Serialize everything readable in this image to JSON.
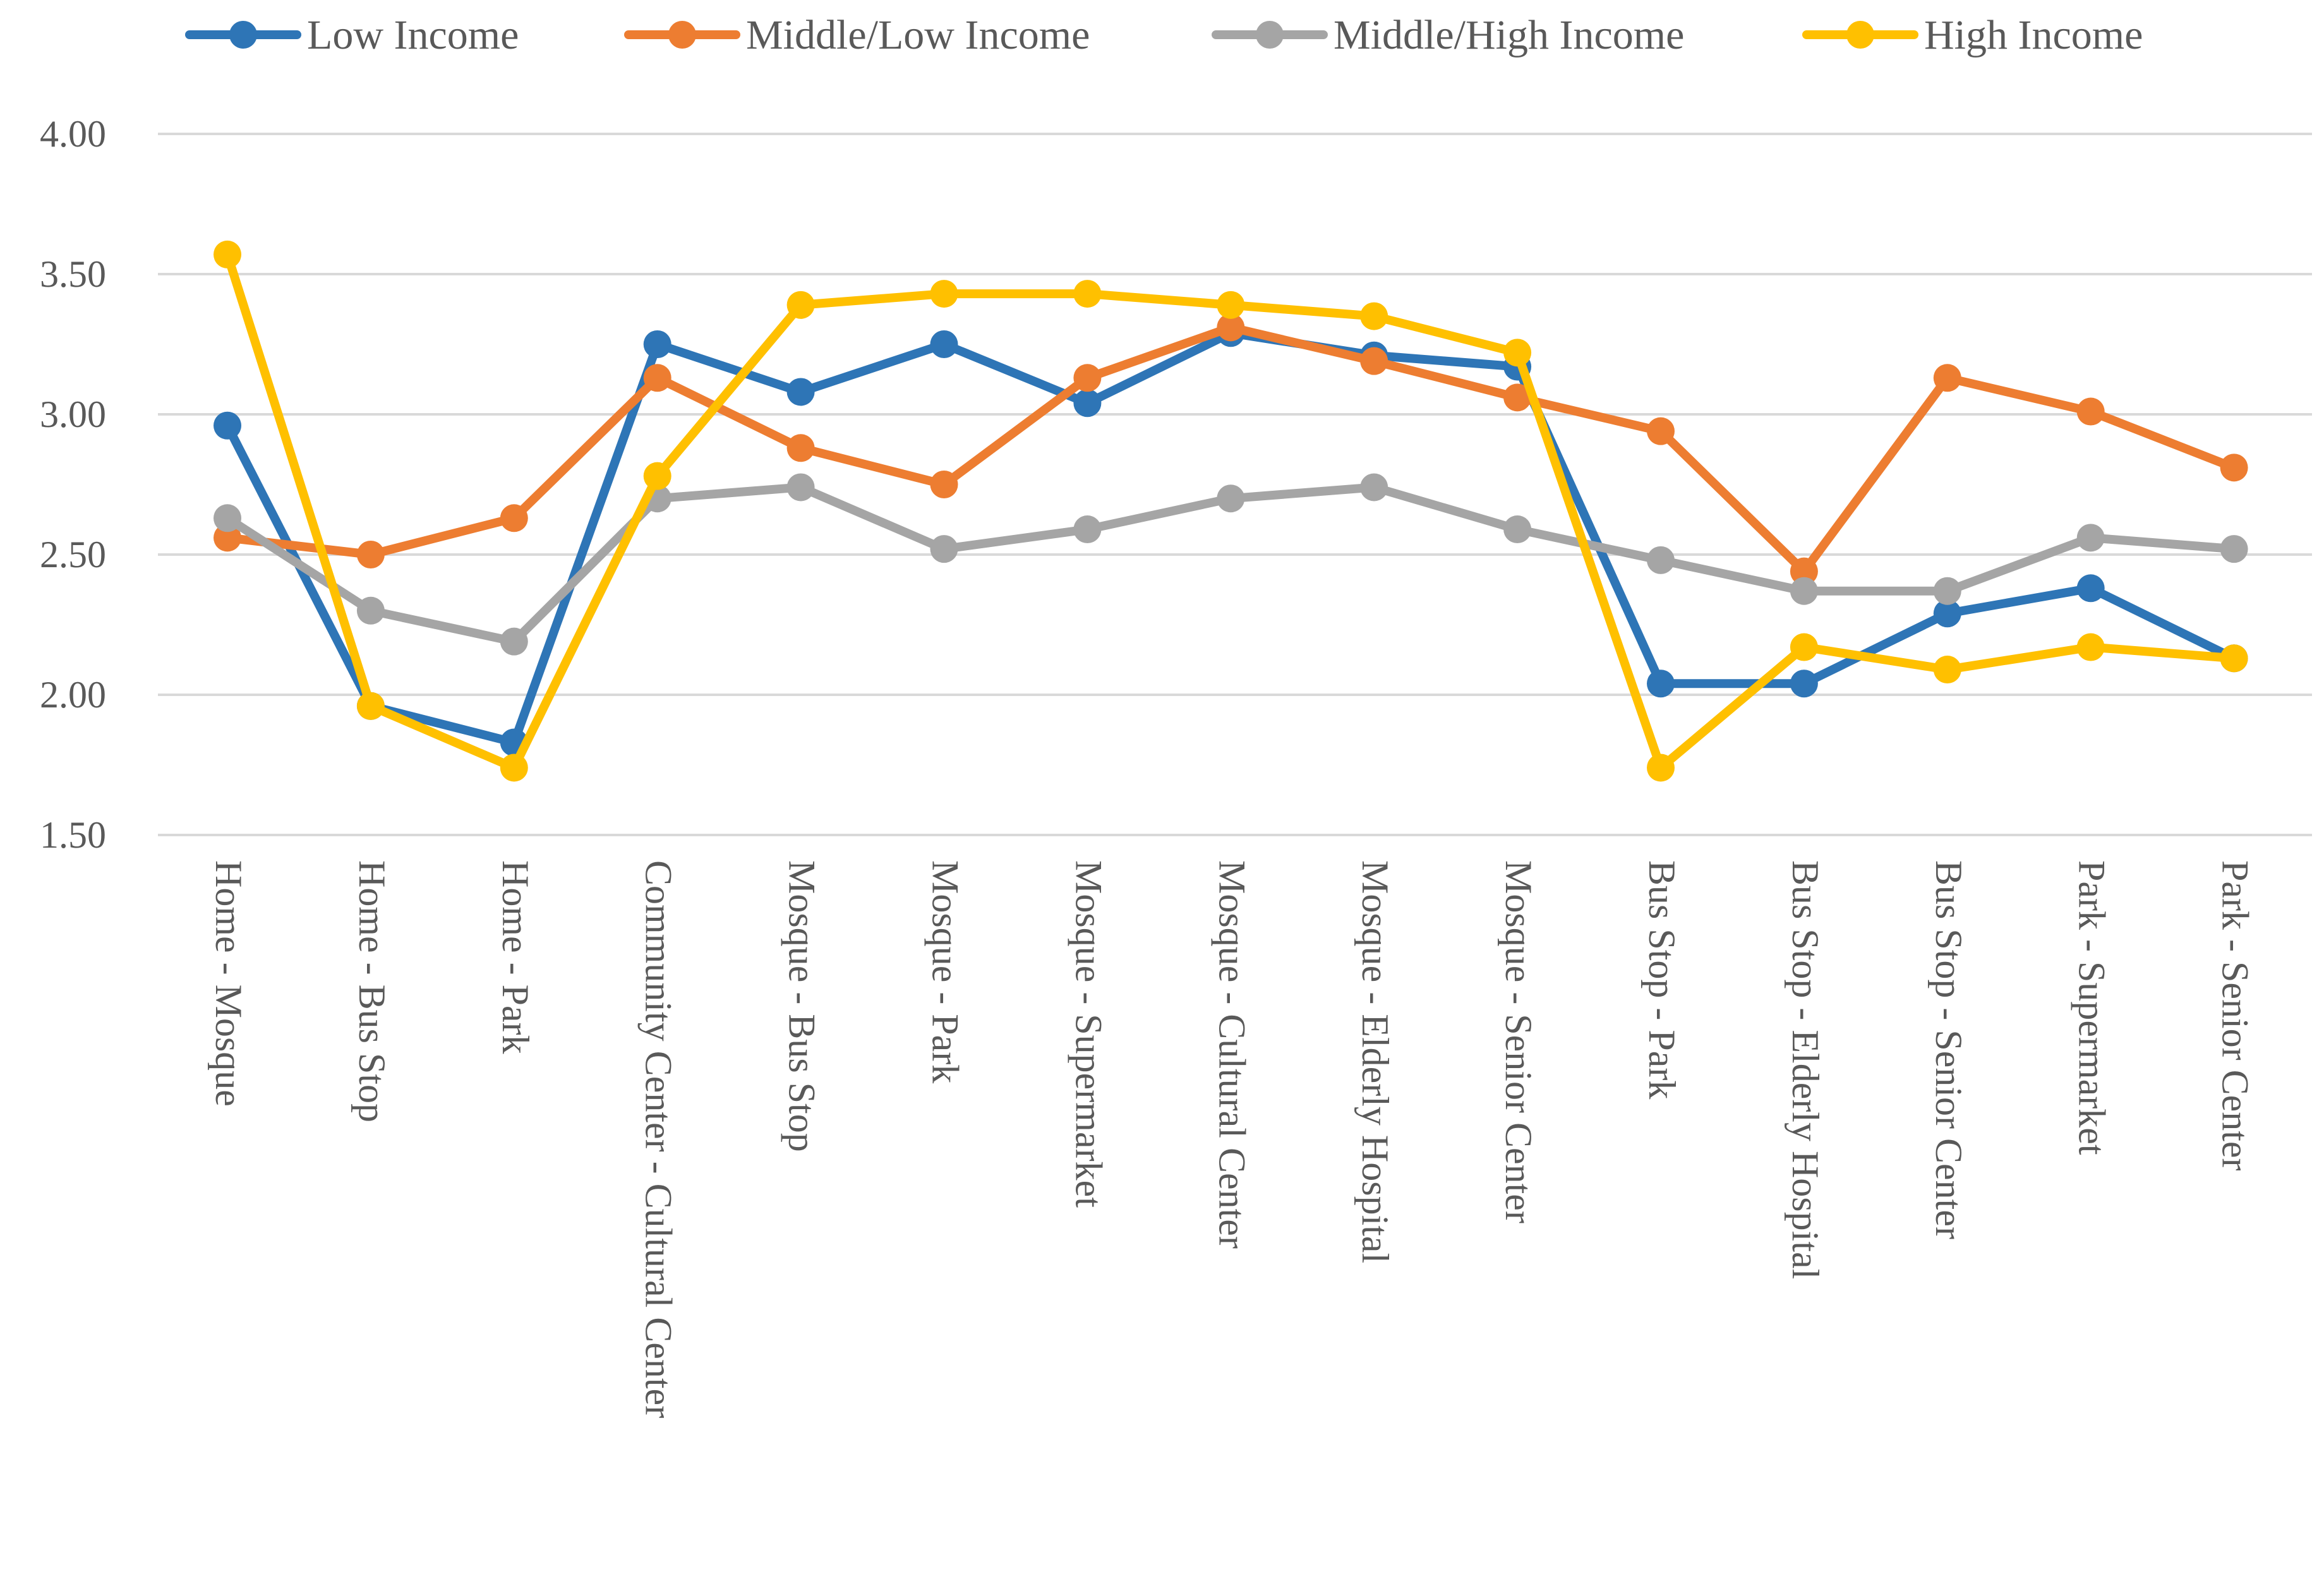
{
  "chart_data": {
    "type": "line",
    "title": "",
    "xlabel": "",
    "ylabel": "",
    "ylim": [
      1.5,
      4.0
    ],
    "yticks": [
      1.5,
      2.0,
      2.5,
      3.0,
      3.5,
      4.0
    ],
    "ytick_labels": [
      "1.50",
      "2.00",
      "2.50",
      "3.00",
      "3.50",
      "4.00"
    ],
    "grid": true,
    "legend_position": "top",
    "categories": [
      "Home - Mosque",
      "Home - Bus Stop",
      "Home - Park",
      "Community Center - Cultural Center",
      "Mosque - Bus Stop",
      "Mosque - Park",
      "Mosque - Supermarket",
      "Mosque - Cultural Center",
      "Mosque - Elderly Hospital",
      "Mosque - Senior Center",
      "Bus Stop - Park",
      "Bus Stop - Elderly Hospital",
      "Bus Stop - Senior Center",
      "Park - Supermarket",
      "Park - Senior Center"
    ],
    "series": [
      {
        "name": "Low Income",
        "color": "#2e75b6",
        "values": [
          2.96,
          1.96,
          1.83,
          3.25,
          3.08,
          3.25,
          3.04,
          3.29,
          3.21,
          3.17,
          2.04,
          2.04,
          2.29,
          2.38,
          2.13
        ]
      },
      {
        "name": "Middle/Low Income",
        "color": "#ed7d31",
        "values": [
          2.56,
          2.5,
          2.63,
          3.13,
          2.88,
          2.75,
          3.13,
          3.31,
          3.19,
          3.06,
          2.94,
          2.44,
          3.13,
          3.01,
          2.81
        ]
      },
      {
        "name": "Middle/High Income",
        "color": "#a5a5a5",
        "values": [
          2.63,
          2.3,
          2.19,
          2.7,
          2.74,
          2.52,
          2.59,
          2.7,
          2.74,
          2.59,
          2.48,
          2.37,
          2.37,
          2.56,
          2.52
        ]
      },
      {
        "name": "High Income",
        "color": "#ffc000",
        "values": [
          3.57,
          1.96,
          1.74,
          2.78,
          3.39,
          3.43,
          3.43,
          3.39,
          3.35,
          3.22,
          1.74,
          2.17,
          2.09,
          2.17,
          2.13
        ]
      }
    ]
  }
}
